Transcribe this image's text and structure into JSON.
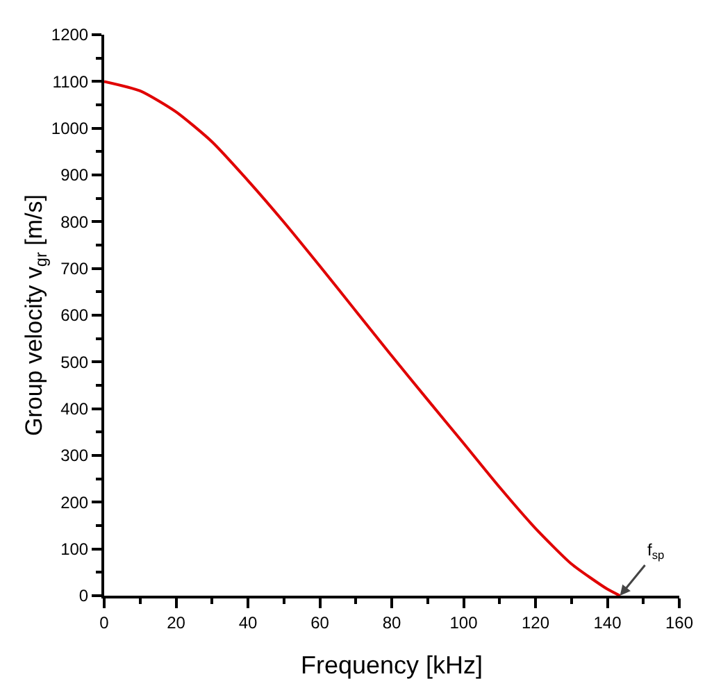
{
  "chart_data": {
    "type": "line",
    "xlabel": "Frequency [kHz]",
    "ylabel": "Group velocity v$_{gr}$ [m/s]",
    "x": [
      0,
      10,
      20,
      30,
      40,
      50,
      60,
      70,
      80,
      90,
      100,
      110,
      120,
      130,
      140,
      143.5
    ],
    "series": [
      {
        "color": "#e00000",
        "values": [
          1100,
          1080,
          1035,
          971,
          888,
          799,
          705,
          609,
          513,
          419,
          326,
          232,
          144,
          68,
          14,
          0
        ]
      }
    ],
    "xlim": [
      0,
      160
    ],
    "xticks": [
      0,
      20,
      40,
      60,
      80,
      100,
      120,
      140,
      160
    ],
    "ylim": [
      0,
      1200
    ],
    "yticks": [
      0,
      100,
      200,
      300,
      400,
      500,
      600,
      700,
      800,
      900,
      1000,
      1100,
      1200
    ],
    "grid": false,
    "legend": false,
    "marker": "none",
    "line_style": "solid",
    "annotations": [
      {
        "text": "f$_{sp}$",
        "x": 143.5,
        "y": 0
      }
    ]
  }
}
